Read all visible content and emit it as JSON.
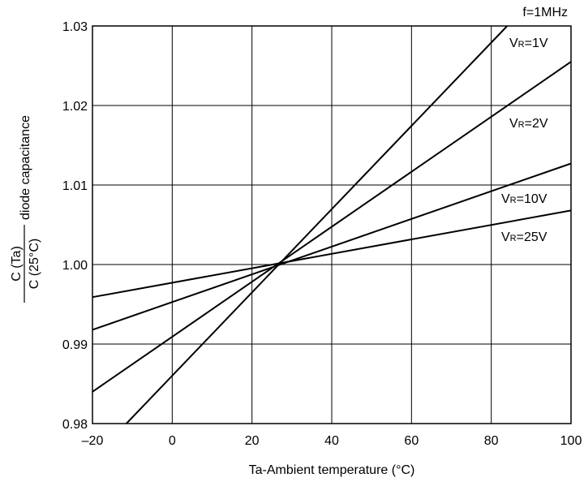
{
  "chart_data": {
    "type": "line",
    "title": "",
    "xlabel": "Ta-Ambient temperature (°C)",
    "ylabel": {
      "numerator": "C (Ta)",
      "denominator": "C (25°C)",
      "suffix": "diode capacitance"
    },
    "xlim": [
      -20,
      100
    ],
    "ylim": [
      0.98,
      1.03
    ],
    "x_ticks": [
      -20,
      0,
      20,
      40,
      60,
      80,
      100
    ],
    "x_tick_labels": [
      "–20",
      "0",
      "20",
      "40",
      "60",
      "80",
      "100"
    ],
    "y_ticks": [
      0.98,
      0.99,
      1.0,
      1.01,
      1.02,
      1.03
    ],
    "y_tick_labels": [
      "0.98",
      "0.99",
      "1.00",
      "1.01",
      "1.02",
      "1.03"
    ],
    "grid": true,
    "condition": "f=1MHz",
    "series": [
      {
        "name": "VR=1V",
        "label_main": "V",
        "label_sub": "R",
        "label_rest": "=1V",
        "x": [
          -11.5,
          84
        ],
        "y": [
          0.98,
          1.03
        ]
      },
      {
        "name": "VR=2V",
        "label_main": "V",
        "label_sub": "R",
        "label_rest": "=2V",
        "x": [
          -20,
          100
        ],
        "y": [
          0.984,
          1.0255
        ]
      },
      {
        "name": "VR=10V",
        "label_main": "V",
        "label_sub": "R",
        "label_rest": "=10V",
        "x": [
          -20,
          100
        ],
        "y": [
          0.9918,
          1.0127
        ]
      },
      {
        "name": "VR=25V",
        "label_main": "V",
        "label_sub": "R",
        "label_rest": "=25V",
        "x": [
          -20,
          100
        ],
        "y": [
          0.9959,
          1.0068
        ]
      }
    ]
  }
}
